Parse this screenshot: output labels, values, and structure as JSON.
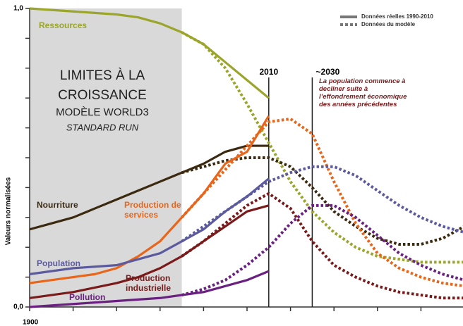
{
  "chart_data": {
    "type": "line",
    "y_label": "Valeurs normalisées",
    "title_lines": [
      "LIMITES À LA",
      "CROISSANCE",
      "MODÈLE WORLD3",
      "STANDARD RUN"
    ],
    "legend": [
      {
        "label": "Données réelles 1990-2010",
        "style": "solid"
      },
      {
        "label": "Données du modèle",
        "style": "dotted"
      }
    ],
    "markers": [
      {
        "x": 2010,
        "label": "2010"
      },
      {
        "x": 2030,
        "label": "~2030"
      }
    ],
    "annotation": "La population commence à decliner suite à l’effondrement économique des années précédentes",
    "shaded_range": [
      1900,
      1970
    ],
    "xlim": [
      1900,
      2100
    ],
    "ylim": [
      0,
      1
    ],
    "xticks": [
      1900
    ],
    "xminorticks": [
      1920,
      1940,
      1960,
      1980,
      2000,
      2020,
      2040,
      2060,
      2080,
      2100
    ],
    "yticks": [
      {
        "value": 0,
        "label": "0,0"
      },
      {
        "value": 1,
        "label": "1,0"
      }
    ],
    "yminorticks": [
      0.1,
      0.2,
      0.3,
      0.4,
      0.5,
      0.6,
      0.7,
      0.8,
      0.9
    ],
    "x": [
      1900,
      1910,
      1920,
      1930,
      1940,
      1950,
      1960,
      1970,
      1980,
      1990,
      2000,
      2010,
      2020,
      2030,
      2040,
      2050,
      2060,
      2070,
      2080,
      2090,
      2100
    ],
    "series": [
      {
        "name": "Ressources",
        "color": "#9aa52a",
        "real": [
          1.0,
          0.995,
          0.99,
          0.985,
          0.98,
          0.97,
          0.95,
          0.92,
          0.88,
          0.82,
          0.76,
          0.7,
          null,
          null,
          null,
          null,
          null,
          null,
          null,
          null,
          null
        ],
        "model": [
          null,
          null,
          null,
          null,
          null,
          null,
          null,
          0.92,
          0.88,
          0.8,
          0.68,
          0.55,
          0.42,
          0.32,
          0.25,
          0.2,
          0.17,
          0.16,
          0.15,
          0.15,
          0.15
        ]
      },
      {
        "name": "Nourriture",
        "color": "#3b2a10",
        "real": [
          0.26,
          0.28,
          0.3,
          0.33,
          0.36,
          0.39,
          0.42,
          0.45,
          0.48,
          0.52,
          0.54,
          0.54,
          null,
          null,
          null,
          null,
          null,
          null,
          null,
          null,
          null
        ],
        "model": [
          null,
          null,
          null,
          null,
          null,
          null,
          null,
          0.45,
          0.47,
          0.49,
          0.5,
          0.5,
          0.47,
          0.4,
          0.32,
          0.27,
          0.23,
          0.21,
          0.21,
          0.23,
          0.27
        ]
      },
      {
        "name": "Production de services",
        "color": "#e8651a",
        "real": [
          0.08,
          0.09,
          0.1,
          0.11,
          0.13,
          0.17,
          0.22,
          0.3,
          0.38,
          0.48,
          0.52,
          0.64,
          null,
          null,
          null,
          null,
          null,
          null,
          null,
          null,
          null
        ],
        "model": [
          null,
          null,
          null,
          null,
          null,
          null,
          null,
          0.3,
          0.38,
          0.46,
          0.54,
          0.62,
          0.63,
          0.58,
          0.42,
          0.28,
          0.18,
          0.13,
          0.1,
          0.08,
          0.07
        ]
      },
      {
        "name": "Population",
        "color": "#5c5a9e",
        "real": [
          0.11,
          0.12,
          0.13,
          0.135,
          0.14,
          0.16,
          0.18,
          0.22,
          0.26,
          0.32,
          0.37,
          0.43,
          null,
          null,
          null,
          null,
          null,
          null,
          null,
          null,
          null
        ],
        "model": [
          null,
          null,
          null,
          null,
          null,
          null,
          null,
          0.22,
          0.27,
          0.32,
          0.37,
          0.42,
          0.45,
          0.47,
          0.47,
          0.44,
          0.39,
          0.34,
          0.3,
          0.27,
          0.25
        ]
      },
      {
        "name": "Production industrielle",
        "color": "#7a1a1a",
        "real": [
          0.03,
          0.04,
          0.05,
          0.065,
          0.08,
          0.1,
          0.13,
          0.17,
          0.22,
          0.27,
          0.32,
          0.34,
          null,
          null,
          null,
          null,
          null,
          null,
          null,
          null,
          null
        ],
        "model": [
          null,
          null,
          null,
          null,
          null,
          null,
          null,
          0.17,
          0.22,
          0.28,
          0.34,
          0.38,
          0.33,
          0.22,
          0.14,
          0.1,
          0.07,
          0.05,
          0.04,
          0.03,
          0.03
        ]
      },
      {
        "name": "Pollution",
        "color": "#6a2080",
        "real": [
          0.0,
          0.005,
          0.01,
          0.015,
          0.02,
          0.025,
          0.03,
          0.04,
          0.05,
          0.07,
          0.09,
          0.12,
          null,
          null,
          null,
          null,
          null,
          null,
          null,
          null,
          null
        ],
        "model": [
          null,
          null,
          null,
          null,
          null,
          null,
          null,
          0.04,
          0.06,
          0.09,
          0.14,
          0.2,
          0.28,
          0.34,
          0.34,
          0.3,
          0.24,
          0.18,
          0.14,
          0.11,
          0.09
        ]
      }
    ]
  }
}
